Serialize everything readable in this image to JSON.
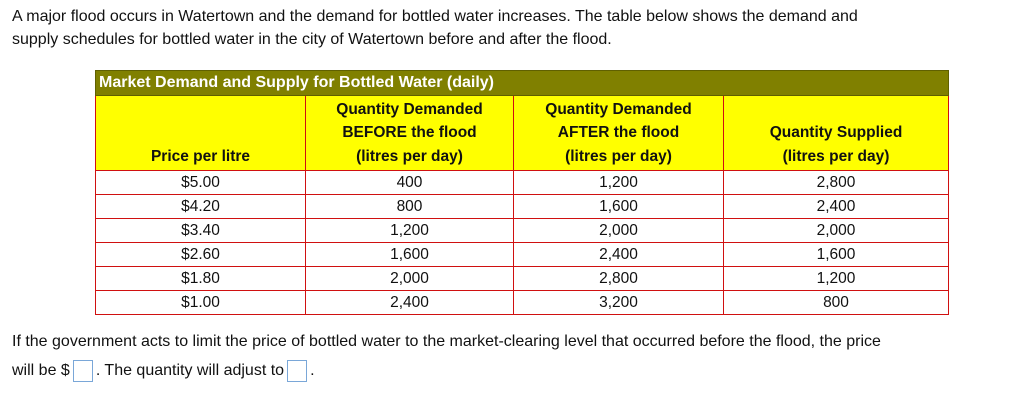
{
  "intro": [
    "A major flood occurs in Watertown and the demand for bottled water increases. The table below shows the demand and",
    "supply schedules for bottled water in the city of Watertown before and after the flood."
  ],
  "table": {
    "title": "Market Demand and Supply for Bottled Water (daily)",
    "headers": [
      [
        "Price per litre"
      ],
      [
        "Quantity Demanded",
        "BEFORE the flood",
        "(litres per day)"
      ],
      [
        "Quantity Demanded",
        "AFTER the flood",
        "(litres per day)"
      ],
      [
        "Quantity Supplied",
        "(litres per day)"
      ]
    ],
    "rows": [
      [
        "$5.00",
        "400",
        "1,200",
        "2,800"
      ],
      [
        "$4.20",
        "800",
        "1,600",
        "2,400"
      ],
      [
        "$3.40",
        "1,200",
        "2,000",
        "2,000"
      ],
      [
        "$2.60",
        "1,600",
        "2,400",
        "1,600"
      ],
      [
        "$1.80",
        "2,000",
        "2,800",
        "1,200"
      ],
      [
        "$1.00",
        "2,400",
        "3,200",
        "800"
      ]
    ]
  },
  "question": {
    "line1": "If the government acts to limit the price of bottled water to the market-clearing level that occurred before the flood, the price",
    "part1": "will be $",
    "part2": ". The quantity will adjust to",
    "part3": "."
  }
}
